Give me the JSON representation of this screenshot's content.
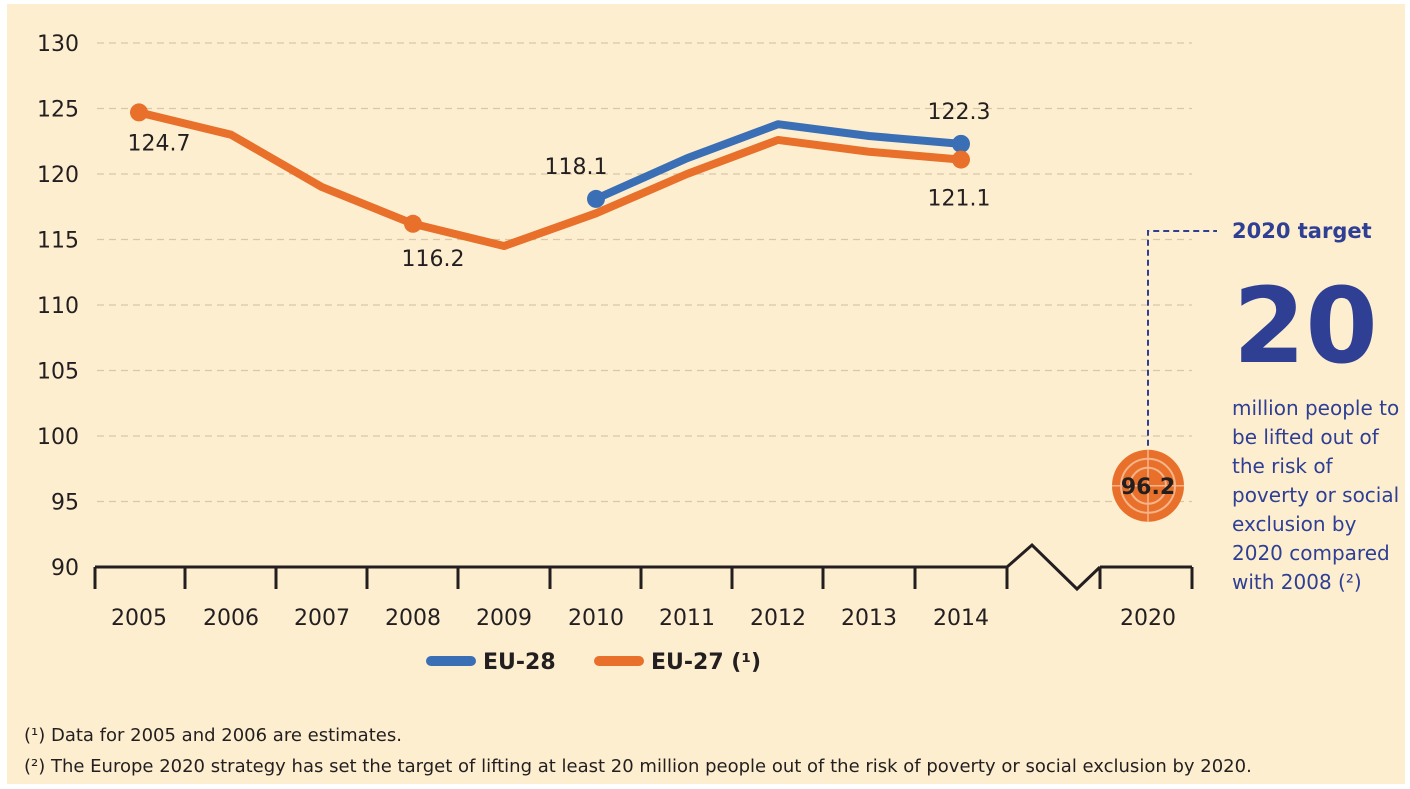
{
  "chart_data": {
    "type": "line",
    "x": [
      "2005",
      "2006",
      "2007",
      "2008",
      "2009",
      "2010",
      "2011",
      "2012",
      "2013",
      "2014",
      "2020"
    ],
    "ylim": [
      90,
      130
    ],
    "yticks": [
      90,
      95,
      100,
      105,
      110,
      115,
      120,
      125,
      130
    ],
    "grid": true,
    "axis_break_between": [
      "2014",
      "2020"
    ],
    "series": [
      {
        "name": "EU-28",
        "color": "#3a6fb6",
        "points": [
          {
            "x": "2010",
            "y": 118.1
          },
          {
            "x": "2011",
            "y": 121.2
          },
          {
            "x": "2012",
            "y": 123.8
          },
          {
            "x": "2013",
            "y": 122.9
          },
          {
            "x": "2014",
            "y": 122.3
          }
        ]
      },
      {
        "name": "EU-27 (¹)",
        "color": "#e8702a",
        "points": [
          {
            "x": "2005",
            "y": 124.7
          },
          {
            "x": "2006",
            "y": 123.0
          },
          {
            "x": "2007",
            "y": 119.0
          },
          {
            "x": "2008",
            "y": 116.2
          },
          {
            "x": "2009",
            "y": 114.5
          },
          {
            "x": "2010",
            "y": 117.0
          },
          {
            "x": "2011",
            "y": 120.0
          },
          {
            "x": "2012",
            "y": 122.6
          },
          {
            "x": "2013",
            "y": 121.7
          },
          {
            "x": "2014",
            "y": 121.1
          }
        ]
      }
    ],
    "data_labels": [
      {
        "text": "124.7",
        "series": "EU-27 (¹)",
        "x": "2005"
      },
      {
        "text": "116.2",
        "series": "EU-27 (¹)",
        "x": "2008"
      },
      {
        "text": "118.1",
        "series": "EU-28",
        "x": "2010"
      },
      {
        "text": "122.3",
        "series": "EU-28",
        "x": "2014"
      },
      {
        "text": "121.1",
        "series": "EU-27 (¹)",
        "x": "2014"
      }
    ],
    "target": {
      "x": "2020",
      "y": 96.2,
      "label": "96.2"
    },
    "legend": {
      "placement": "bottom-center",
      "entries": [
        "EU-28",
        "EU-27 (¹)"
      ]
    }
  },
  "target_panel": {
    "heading": "2020 target",
    "big_number": "20",
    "description": "million people to be lifted out of the risk of poverty or social exclusion by 2020 compared with 2008 (²)"
  },
  "footnotes": [
    "(¹) Data for 2005 and 2006 are estimates.",
    "(²) The Europe 2020 strategy has set the target of lifting at least 20 million people out of the risk of poverty or social exclusion by 2020."
  ],
  "colors": {
    "background": "#fdeed0",
    "eu28": "#3a6fb6",
    "eu27": "#e8702a",
    "target_text": "#2e3f94"
  }
}
